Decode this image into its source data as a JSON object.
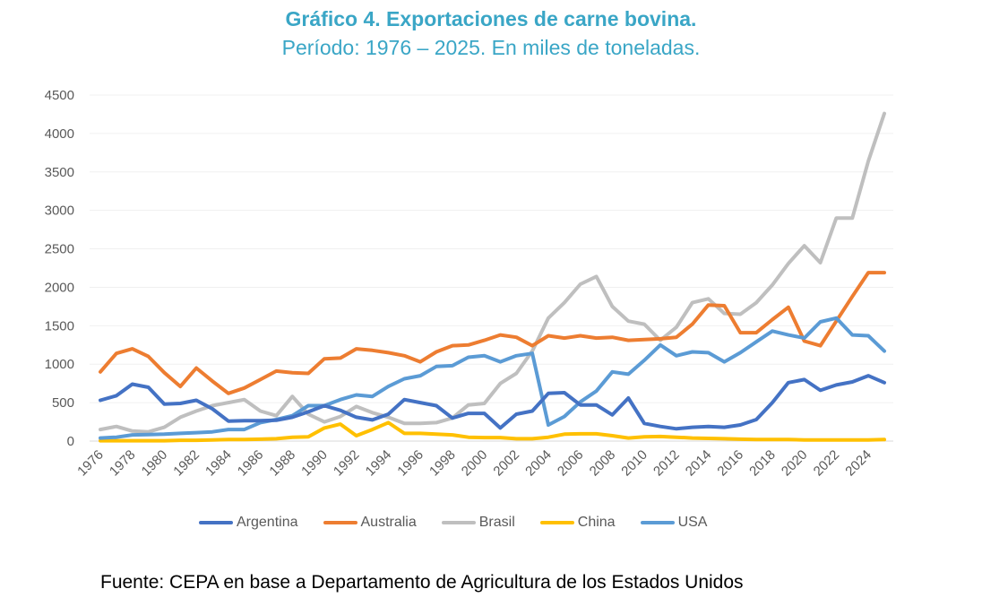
{
  "chart_data": {
    "type": "line",
    "title": "Gráfico 4. Exportaciones de carne bovina.",
    "subtitle": "Período: 1976 – 2025. En miles de toneladas.",
    "xlabel": "",
    "ylabel": "",
    "ylim": [
      0,
      4500
    ],
    "yticks": [
      0,
      500,
      1000,
      1500,
      2000,
      2500,
      3000,
      3500,
      4000,
      4500
    ],
    "grid": true,
    "legend_position": "bottom",
    "x": [
      1976,
      1977,
      1978,
      1979,
      1980,
      1981,
      1982,
      1983,
      1984,
      1985,
      1986,
      1987,
      1988,
      1989,
      1990,
      1991,
      1992,
      1993,
      1994,
      1995,
      1996,
      1997,
      1998,
      1999,
      2000,
      2001,
      2002,
      2003,
      2004,
      2005,
      2006,
      2007,
      2008,
      2009,
      2010,
      2011,
      2012,
      2013,
      2014,
      2015,
      2016,
      2017,
      2018,
      2019,
      2020,
      2021,
      2022,
      2023,
      2024,
      2025
    ],
    "xtick_labels": [
      "1976",
      "1978",
      "1980",
      "1982",
      "1984",
      "1986",
      "1988",
      "1990",
      "1992",
      "1994",
      "1996",
      "1998",
      "2000",
      "2002",
      "2004",
      "2006",
      "2008",
      "2010",
      "2012",
      "2014",
      "2016",
      "2018",
      "2020",
      "2022",
      "2024"
    ],
    "series": [
      {
        "name": "Argentina",
        "color": "#4472c4",
        "values": [
          530,
          590,
          740,
          700,
          480,
          490,
          530,
          420,
          260,
          265,
          265,
          270,
          310,
          380,
          460,
          400,
          310,
          275,
          350,
          540,
          500,
          460,
          300,
          360,
          360,
          170,
          350,
          390,
          620,
          630,
          470,
          470,
          340,
          560,
          230,
          190,
          160,
          180,
          190,
          180,
          210,
          280,
          500,
          760,
          800,
          660,
          730,
          770,
          850,
          760
        ]
      },
      {
        "name": "Australia",
        "color": "#ed7d31",
        "values": [
          900,
          1140,
          1200,
          1100,
          890,
          710,
          950,
          780,
          620,
          690,
          800,
          910,
          890,
          880,
          1070,
          1080,
          1200,
          1180,
          1150,
          1110,
          1030,
          1160,
          1240,
          1250,
          1310,
          1380,
          1350,
          1240,
          1370,
          1340,
          1370,
          1340,
          1350,
          1310,
          1320,
          1330,
          1350,
          1520,
          1770,
          1760,
          1410,
          1410,
          1580,
          1740,
          1300,
          1240,
          1560,
          1880,
          2190,
          2190
        ]
      },
      {
        "name": "Brasil",
        "color": "#bfbfbf",
        "values": [
          150,
          190,
          130,
          120,
          180,
          310,
          390,
          460,
          500,
          540,
          390,
          330,
          580,
          350,
          250,
          320,
          450,
          370,
          310,
          230,
          230,
          240,
          300,
          470,
          490,
          750,
          880,
          1170,
          1600,
          1800,
          2040,
          2140,
          1750,
          1560,
          1520,
          1310,
          1480,
          1800,
          1850,
          1660,
          1650,
          1800,
          2030,
          2310,
          2540,
          2320,
          2900,
          2900,
          3640,
          4260
        ]
      },
      {
        "name": "China",
        "color": "#ffc000",
        "values": [
          5,
          5,
          5,
          5,
          5,
          10,
          10,
          15,
          20,
          20,
          25,
          30,
          50,
          55,
          170,
          220,
          70,
          150,
          240,
          100,
          100,
          90,
          80,
          50,
          45,
          45,
          30,
          30,
          50,
          90,
          95,
          95,
          70,
          40,
          55,
          60,
          50,
          40,
          35,
          30,
          25,
          20,
          20,
          20,
          15,
          15,
          15,
          15,
          15,
          20
        ]
      },
      {
        "name": "USA",
        "color": "#5b9bd5",
        "values": [
          40,
          50,
          80,
          85,
          90,
          100,
          110,
          120,
          150,
          150,
          240,
          280,
          330,
          460,
          460,
          540,
          600,
          580,
          710,
          810,
          850,
          970,
          980,
          1090,
          1110,
          1030,
          1110,
          1140,
          210,
          320,
          510,
          650,
          900,
          870,
          1050,
          1250,
          1110,
          1160,
          1150,
          1030,
          1150,
          1290,
          1430,
          1380,
          1340,
          1550,
          1600,
          1380,
          1370,
          1170
        ]
      }
    ],
    "source": "Fuente: CEPA en base a Departamento de Agricultura de los Estados Unidos"
  }
}
